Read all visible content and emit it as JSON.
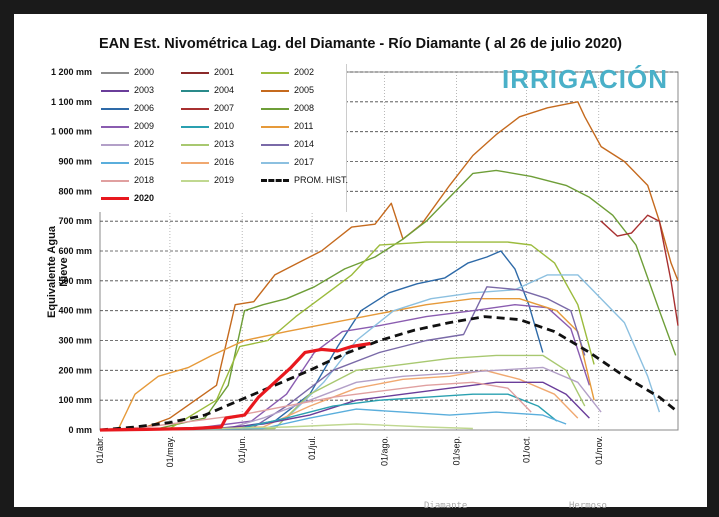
{
  "chart_data": {
    "type": "line",
    "title": "EAN Est. Nivométrica Lag. del Diamante - Río Diamante  ( al 26 de julio 2020)",
    "ylabel": "Equivalente Agua Nieve",
    "ylim": [
      0,
      1200
    ],
    "y_ticks": [
      "0 mm",
      "100 mm",
      "200 mm",
      "300 mm",
      "400 mm",
      "500 mm",
      "600 mm",
      "700 mm",
      "800 mm",
      "900 mm",
      "1 000 mm",
      "1 100 mm",
      "1 200 mm"
    ],
    "x_ticks": [
      "01/abr.",
      "01/may.",
      "01/jun.",
      "01/jul.",
      "01/ago.",
      "01/sep.",
      "01/oct.",
      "01/nov."
    ],
    "grid": "dashed horizontal",
    "legend": {
      "placement": "top-left",
      "entries": [
        "2000",
        "2001",
        "2002",
        "2003",
        "2004",
        "2005",
        "2006",
        "2007",
        "2008",
        "2009",
        "2010",
        "2011",
        "2012",
        "2013",
        "2014",
        "2015",
        "2016",
        "2017",
        "2018",
        "2019",
        "PROM. HIST.",
        "2020"
      ]
    },
    "colors": {
      "2000": "#8c8c8c",
      "2001": "#8b2a2a",
      "2002": "#9bbb3c",
      "2003": "#6a3d9a",
      "2004": "#2a8a8a",
      "2005": "#c56a1e",
      "2006": "#2e6aa8",
      "2007": "#a83030",
      "2008": "#6e9e38",
      "2009": "#8a5cb0",
      "2010": "#2aa0b0",
      "2011": "#e69a3a",
      "2012": "#b3a0c8",
      "2013": "#a8c870",
      "2014": "#7a6aa8",
      "2015": "#5aaedc",
      "2016": "#f0a870",
      "2017": "#8cc0e0",
      "2018": "#e0a0a0",
      "2019": "#c0d890",
      "PROM. HIST.": "#111111",
      "2020": "#e8181e"
    },
    "series": [
      {
        "name": "2005",
        "values": [
          [
            0,
            0
          ],
          [
            18,
            5
          ],
          [
            30,
            40
          ],
          [
            50,
            150
          ],
          [
            58,
            420
          ],
          [
            66,
            430
          ],
          [
            75,
            520
          ],
          [
            85,
            560
          ],
          [
            95,
            600
          ],
          [
            108,
            680
          ],
          [
            118,
            690
          ],
          [
            125,
            760
          ],
          [
            130,
            640
          ],
          [
            138,
            690
          ],
          [
            150,
            820
          ],
          [
            160,
            920
          ],
          [
            170,
            990
          ],
          [
            180,
            1050
          ],
          [
            192,
            1080
          ],
          [
            205,
            1100
          ],
          [
            208,
            1050
          ],
          [
            215,
            950
          ],
          [
            225,
            900
          ],
          [
            235,
            820
          ],
          [
            240,
            700
          ],
          [
            245,
            560
          ],
          [
            248,
            500
          ]
        ]
      },
      {
        "name": "2008",
        "values": [
          [
            0,
            0
          ],
          [
            25,
            5
          ],
          [
            45,
            40
          ],
          [
            55,
            150
          ],
          [
            62,
            400
          ],
          [
            70,
            420
          ],
          [
            80,
            440
          ],
          [
            92,
            480
          ],
          [
            105,
            540
          ],
          [
            118,
            580
          ],
          [
            130,
            640
          ],
          [
            140,
            700
          ],
          [
            150,
            780
          ],
          [
            160,
            860
          ],
          [
            170,
            870
          ],
          [
            185,
            850
          ],
          [
            200,
            820
          ],
          [
            210,
            780
          ],
          [
            220,
            720
          ],
          [
            230,
            620
          ],
          [
            240,
            400
          ],
          [
            247,
            250
          ]
        ]
      },
      {
        "name": "2002",
        "values": [
          [
            0,
            0
          ],
          [
            30,
            5
          ],
          [
            50,
            100
          ],
          [
            60,
            280
          ],
          [
            72,
            300
          ],
          [
            84,
            380
          ],
          [
            96,
            450
          ],
          [
            108,
            520
          ],
          [
            120,
            620
          ],
          [
            140,
            630
          ],
          [
            160,
            630
          ],
          [
            175,
            630
          ],
          [
            185,
            620
          ],
          [
            195,
            560
          ],
          [
            205,
            420
          ],
          [
            212,
            220
          ]
        ]
      },
      {
        "name": "2007",
        "values": [
          [
            215,
            700
          ],
          [
            222,
            650
          ],
          [
            228,
            660
          ],
          [
            235,
            720
          ],
          [
            240,
            700
          ],
          [
            245,
            500
          ],
          [
            248,
            350
          ]
        ]
      },
      {
        "name": "2006",
        "values": [
          [
            0,
            0
          ],
          [
            55,
            5
          ],
          [
            75,
            30
          ],
          [
            90,
            120
          ],
          [
            102,
            280
          ],
          [
            112,
            400
          ],
          [
            124,
            460
          ],
          [
            136,
            490
          ],
          [
            148,
            510
          ],
          [
            158,
            560
          ],
          [
            166,
            580
          ],
          [
            172,
            600
          ],
          [
            178,
            540
          ],
          [
            184,
            420
          ],
          [
            190,
            260
          ]
        ]
      },
      {
        "name": "2009",
        "values": [
          [
            0,
            0
          ],
          [
            40,
            5
          ],
          [
            65,
            30
          ],
          [
            80,
            120
          ],
          [
            92,
            260
          ],
          [
            104,
            330
          ],
          [
            120,
            350
          ],
          [
            140,
            380
          ],
          [
            160,
            400
          ],
          [
            178,
            420
          ],
          [
            192,
            410
          ],
          [
            202,
            340
          ],
          [
            210,
            150
          ]
        ]
      },
      {
        "name": "2011",
        "values": [
          [
            0,
            0
          ],
          [
            8,
            5
          ],
          [
            15,
            120
          ],
          [
            25,
            180
          ],
          [
            38,
            210
          ],
          [
            48,
            250
          ],
          [
            62,
            300
          ],
          [
            80,
            330
          ],
          [
            100,
            360
          ],
          [
            120,
            390
          ],
          [
            140,
            420
          ],
          [
            160,
            440
          ],
          [
            180,
            440
          ],
          [
            196,
            400
          ],
          [
            205,
            330
          ],
          [
            212,
            100
          ]
        ]
      },
      {
        "name": "2017",
        "values": [
          [
            0,
            0
          ],
          [
            60,
            5
          ],
          [
            80,
            40
          ],
          [
            96,
            160
          ],
          [
            110,
            300
          ],
          [
            126,
            400
          ],
          [
            142,
            440
          ],
          [
            160,
            460
          ],
          [
            178,
            470
          ],
          [
            192,
            520
          ],
          [
            205,
            520
          ],
          [
            215,
            440
          ],
          [
            225,
            360
          ],
          [
            235,
            180
          ],
          [
            240,
            60
          ]
        ]
      },
      {
        "name": "2014",
        "values": [
          [
            0,
            0
          ],
          [
            65,
            5
          ],
          [
            80,
            80
          ],
          [
            100,
            200
          ],
          [
            120,
            260
          ],
          [
            140,
            300
          ],
          [
            156,
            320
          ],
          [
            166,
            480
          ],
          [
            180,
            470
          ],
          [
            192,
            440
          ],
          [
            202,
            400
          ],
          [
            208,
            250
          ]
        ]
      },
      {
        "name": "2013",
        "values": [
          [
            0,
            0
          ],
          [
            75,
            5
          ],
          [
            90,
            120
          ],
          [
            110,
            200
          ],
          [
            130,
            220
          ],
          [
            150,
            240
          ],
          [
            170,
            250
          ],
          [
            190,
            250
          ],
          [
            200,
            200
          ],
          [
            208,
            80
          ]
        ]
      },
      {
        "name": "2016",
        "values": [
          [
            0,
            0
          ],
          [
            70,
            10
          ],
          [
            90,
            80
          ],
          [
            110,
            140
          ],
          [
            130,
            170
          ],
          [
            150,
            180
          ],
          [
            165,
            200
          ],
          [
            180,
            170
          ],
          [
            195,
            120
          ],
          [
            205,
            40
          ]
        ]
      },
      {
        "name": "2012",
        "values": [
          [
            0,
            0
          ],
          [
            55,
            5
          ],
          [
            70,
            40
          ],
          [
            90,
            100
          ],
          [
            110,
            160
          ],
          [
            130,
            180
          ],
          [
            150,
            190
          ],
          [
            170,
            200
          ],
          [
            190,
            210
          ],
          [
            205,
            160
          ],
          [
            215,
            60
          ]
        ]
      },
      {
        "name": "2003",
        "values": [
          [
            0,
            0
          ],
          [
            50,
            5
          ],
          [
            70,
            20
          ],
          [
            90,
            50
          ],
          [
            110,
            100
          ],
          [
            130,
            120
          ],
          [
            150,
            140
          ],
          [
            170,
            160
          ],
          [
            190,
            160
          ],
          [
            200,
            120
          ],
          [
            210,
            40
          ]
        ]
      },
      {
        "name": "2010",
        "values": [
          [
            0,
            0
          ],
          [
            60,
            5
          ],
          [
            80,
            40
          ],
          [
            100,
            80
          ],
          [
            120,
            100
          ],
          [
            140,
            110
          ],
          [
            160,
            120
          ],
          [
            175,
            120
          ],
          [
            188,
            80
          ],
          [
            196,
            30
          ]
        ]
      },
      {
        "name": "2018",
        "values": [
          [
            0,
            0
          ],
          [
            20,
            10
          ],
          [
            40,
            30
          ],
          [
            60,
            50
          ],
          [
            80,
            80
          ],
          [
            100,
            110
          ],
          [
            120,
            130
          ],
          [
            140,
            150
          ],
          [
            160,
            160
          ],
          [
            175,
            140
          ],
          [
            185,
            60
          ]
        ]
      },
      {
        "name": "2015",
        "values": [
          [
            0,
            0
          ],
          [
            70,
            5
          ],
          [
            90,
            40
          ],
          [
            110,
            70
          ],
          [
            130,
            60
          ],
          [
            150,
            50
          ],
          [
            170,
            60
          ],
          [
            190,
            50
          ],
          [
            200,
            20
          ]
        ]
      },
      {
        "name": "2019",
        "values": [
          [
            0,
            0
          ],
          [
            50,
            5
          ],
          [
            80,
            10
          ],
          [
            110,
            20
          ],
          [
            140,
            10
          ],
          [
            160,
            5
          ]
        ]
      },
      {
        "name": "PROM. HIST.",
        "values": [
          [
            0,
            0
          ],
          [
            15,
            10
          ],
          [
            30,
            25
          ],
          [
            45,
            50
          ],
          [
            60,
            100
          ],
          [
            75,
            150
          ],
          [
            90,
            200
          ],
          [
            105,
            255
          ],
          [
            120,
            300
          ],
          [
            135,
            335
          ],
          [
            150,
            360
          ],
          [
            165,
            380
          ],
          [
            180,
            370
          ],
          [
            195,
            330
          ],
          [
            210,
            260
          ],
          [
            225,
            180
          ],
          [
            240,
            110
          ],
          [
            248,
            60
          ]
        ]
      },
      {
        "name": "2020",
        "values": [
          [
            0,
            0
          ],
          [
            20,
            2
          ],
          [
            40,
            5
          ],
          [
            52,
            10
          ],
          [
            54,
            40
          ],
          [
            62,
            50
          ],
          [
            68,
            110
          ],
          [
            75,
            160
          ],
          [
            82,
            210
          ],
          [
            88,
            260
          ],
          [
            95,
            270
          ],
          [
            102,
            265
          ],
          [
            108,
            280
          ],
          [
            116,
            290
          ]
        ]
      }
    ]
  },
  "brand": "IRRIGACIÓN",
  "footer": {
    "left": "Diamante",
    "right": "Hermoso"
  }
}
